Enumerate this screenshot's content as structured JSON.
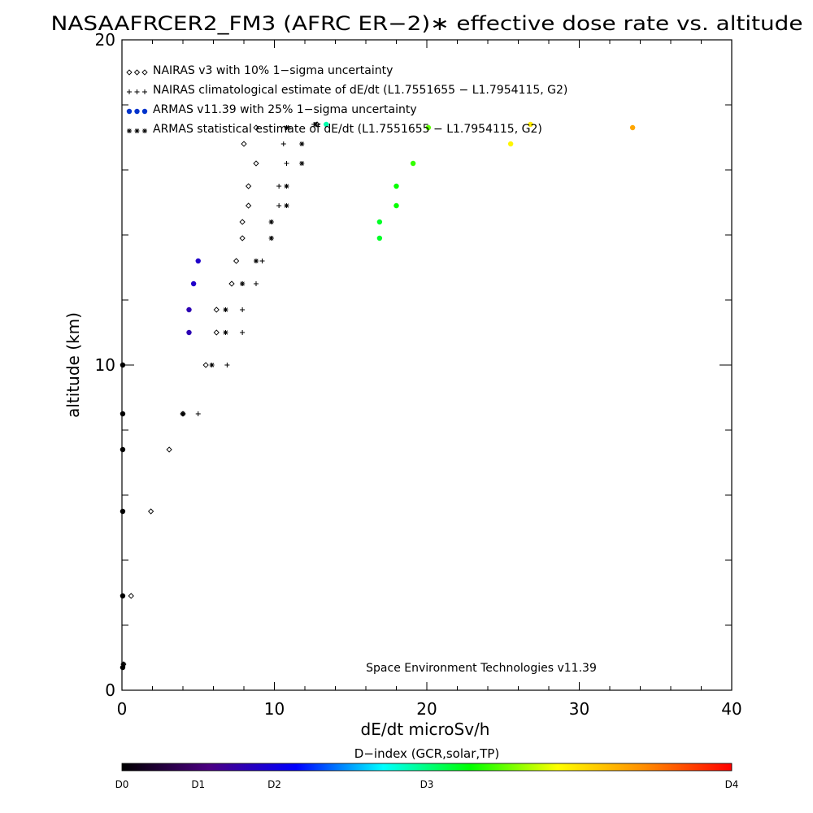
{
  "chart_data": {
    "type": "scatter",
    "title": "NASAAFRCER2_FM3 (AFRC ER−2)∗ effective dose rate vs. altitude",
    "xlabel": "dE/dt microSv/h",
    "ylabel": "altitude (km)",
    "xlim": [
      0,
      40
    ],
    "ylim": [
      0,
      20
    ],
    "x_ticks": [
      "0",
      "10",
      "20",
      "30",
      "40"
    ],
    "y_ticks": [
      "0",
      "10",
      "20"
    ],
    "credit": "Space Environment Technologies v11.39",
    "legend": [
      {
        "symbols": "◇◇◇",
        "label": "NAIRAS v3 with 10% 1−sigma uncertainty"
      },
      {
        "symbols": "+++",
        "label": "NAIRAS climatological estimate of dE/dt (L1.7551655 − L1.7954115, G2)"
      },
      {
        "symbols": "●●●",
        "label": "ARMAS v11.39 with 25% 1−sigma uncertainty"
      },
      {
        "symbols": "∗∗∗",
        "label": "ARMAS statistical estimate of dE/dt (L1.7551655 − L1.7954115, G2)"
      }
    ],
    "colorbar": {
      "title": "D−index (GCR,solar,TP)",
      "labels": [
        "D0",
        "D1",
        "D2",
        "D3",
        "D4"
      ],
      "stops": [
        "#000000",
        "#4b0082",
        "#0000ff",
        "#00ffff",
        "#00ff00",
        "#ffff00",
        "#ff8c00",
        "#ff0000"
      ]
    },
    "series": [
      {
        "name": "NAIRAS v3 with 10% 1−sigma uncertainty",
        "marker": "diamond",
        "points": [
          [
            0.1,
            0.8
          ],
          [
            0.6,
            2.9
          ],
          [
            1.9,
            5.5
          ],
          [
            3.1,
            7.4
          ],
          [
            4.0,
            8.5
          ],
          [
            5.5,
            10.0
          ],
          [
            6.2,
            11.0
          ],
          [
            6.2,
            11.7
          ],
          [
            7.2,
            12.5
          ],
          [
            7.5,
            13.2
          ],
          [
            7.9,
            13.9
          ],
          [
            7.9,
            14.4
          ],
          [
            8.3,
            14.9
          ],
          [
            8.3,
            15.5
          ],
          [
            8.8,
            16.2
          ],
          [
            8.0,
            16.8
          ],
          [
            8.8,
            17.3
          ],
          [
            12.8,
            17.4
          ]
        ]
      },
      {
        "name": "NAIRAS climatological estimate of dE/dt (L1.7551655 − L1.7954115, G2)",
        "marker": "plus",
        "points": [
          [
            5.0,
            8.5
          ],
          [
            6.9,
            10.0
          ],
          [
            7.9,
            11.0
          ],
          [
            7.9,
            11.7
          ],
          [
            7.9,
            12.5
          ],
          [
            8.8,
            12.5
          ],
          [
            9.2,
            13.2
          ],
          [
            9.8,
            13.9
          ],
          [
            9.8,
            14.4
          ],
          [
            10.3,
            14.9
          ],
          [
            10.3,
            15.5
          ],
          [
            10.8,
            16.2
          ],
          [
            10.6,
            16.8
          ],
          [
            10.9,
            17.3
          ],
          [
            12.6,
            17.4
          ]
        ]
      },
      {
        "name": "ARMAS v11.39 with 25% 1−sigma uncertainty",
        "marker": "dot",
        "points": [
          {
            "x": 0.05,
            "y": 0.7,
            "d": 0.0
          },
          {
            "x": 0.05,
            "y": 2.9,
            "d": 0.0
          },
          {
            "x": 0.05,
            "y": 5.5,
            "d": 0.0
          },
          {
            "x": 0.05,
            "y": 7.4,
            "d": 0.0
          },
          {
            "x": 0.05,
            "y": 8.5,
            "d": 0.0
          },
          {
            "x": 0.05,
            "y": 10.0,
            "d": 0.0
          },
          {
            "x": 4.4,
            "y": 11.0,
            "d": 0.8
          },
          {
            "x": 4.4,
            "y": 11.7,
            "d": 0.8
          },
          {
            "x": 4.7,
            "y": 12.5,
            "d": 0.9
          },
          {
            "x": 5.0,
            "y": 13.2,
            "d": 0.9
          },
          {
            "x": 16.9,
            "y": 13.9,
            "d": 2.2
          },
          {
            "x": 16.9,
            "y": 14.4,
            "d": 2.2
          },
          {
            "x": 18.0,
            "y": 14.9,
            "d": 2.3
          },
          {
            "x": 18.0,
            "y": 15.5,
            "d": 2.3
          },
          {
            "x": 19.1,
            "y": 16.2,
            "d": 2.4
          },
          {
            "x": 25.5,
            "y": 16.8,
            "d": 2.9
          },
          {
            "x": 13.4,
            "y": 17.4,
            "d": 1.9
          },
          {
            "x": 20.1,
            "y": 17.3,
            "d": 2.5
          },
          {
            "x": 26.8,
            "y": 17.4,
            "d": 2.95
          },
          {
            "x": 33.5,
            "y": 17.3,
            "d": 3.3
          }
        ]
      },
      {
        "name": "ARMAS statistical estimate of dE/dt (L1.7551655 − L1.7954115, G2)",
        "marker": "asterisk",
        "points": [
          [
            0.1,
            0.8
          ],
          [
            4.0,
            8.5
          ],
          [
            5.9,
            10.0
          ],
          [
            6.8,
            11.0
          ],
          [
            6.8,
            11.7
          ],
          [
            7.9,
            12.5
          ],
          [
            8.8,
            13.2
          ],
          [
            9.8,
            13.9
          ],
          [
            9.8,
            14.4
          ],
          [
            10.8,
            14.9
          ],
          [
            10.8,
            15.5
          ],
          [
            11.8,
            16.2
          ],
          [
            11.8,
            16.8
          ],
          [
            10.8,
            17.3
          ],
          [
            12.7,
            17.4
          ]
        ]
      }
    ]
  }
}
